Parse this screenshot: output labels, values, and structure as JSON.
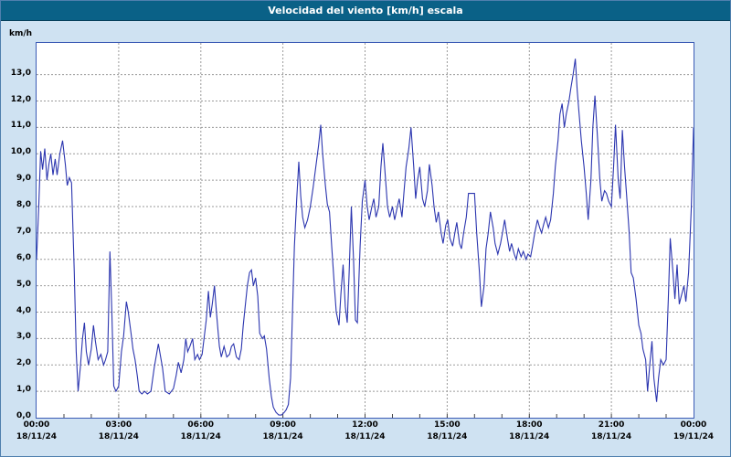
{
  "window": {
    "title": "Velocidad del viento [km/h] escala"
  },
  "colors": {
    "titlebar_bg": "#0a6187",
    "titlebar_text": "#ffffff",
    "frame_bg": "#cfe2f2",
    "plot_bg": "#ffffff",
    "plot_border": "#3b5bb5",
    "gridline": "#9a9a9a",
    "line": "#2b35af",
    "tick_text": "#000000"
  },
  "chart_data": {
    "type": "line",
    "title": "Velocidad del viento [km/h] escala",
    "xlabel": "",
    "ylabel": "km/h",
    "ylim": [
      0,
      14.2
    ],
    "xlim_hours": [
      0,
      24
    ],
    "grid": true,
    "legend_position": "none",
    "line_color": "#2b35af",
    "y_ticks": [
      "0,0",
      "1,0",
      "2,0",
      "3,0",
      "4,0",
      "5,0",
      "6,0",
      "7,0",
      "8,0",
      "9,0",
      "10,0",
      "11,0",
      "12,0",
      "13,0"
    ],
    "x_ticks": [
      {
        "hour": 0,
        "time": "00:00",
        "date": "18/11/24"
      },
      {
        "hour": 3,
        "time": "03:00",
        "date": "18/11/24"
      },
      {
        "hour": 6,
        "time": "06:00",
        "date": "18/11/24"
      },
      {
        "hour": 9,
        "time": "09:00",
        "date": "18/11/24"
      },
      {
        "hour": 12,
        "time": "12:00",
        "date": "18/11/24"
      },
      {
        "hour": 15,
        "time": "15:00",
        "date": "18/11/24"
      },
      {
        "hour": 18,
        "time": "18:00",
        "date": "18/11/24"
      },
      {
        "hour": 21,
        "time": "21:00",
        "date": "18/11/24"
      },
      {
        "hour": 24,
        "time": "00:00",
        "date": "19/11/24"
      }
    ],
    "series": [
      {
        "name": "Velocidad del viento",
        "points": [
          [
            0,
            6.0
          ],
          [
            0.08,
            8.0
          ],
          [
            0.15,
            10.1
          ],
          [
            0.22,
            9.4
          ],
          [
            0.3,
            10.2
          ],
          [
            0.38,
            9.0
          ],
          [
            0.45,
            9.6
          ],
          [
            0.52,
            10.0
          ],
          [
            0.6,
            9.2
          ],
          [
            0.68,
            9.8
          ],
          [
            0.75,
            9.2
          ],
          [
            0.85,
            10.0
          ],
          [
            0.95,
            10.5
          ],
          [
            1.05,
            9.6
          ],
          [
            1.12,
            8.8
          ],
          [
            1.2,
            9.1
          ],
          [
            1.28,
            8.9
          ],
          [
            1.38,
            5.5
          ],
          [
            1.45,
            2.5
          ],
          [
            1.52,
            1.0
          ],
          [
            1.6,
            1.9
          ],
          [
            1.68,
            3.0
          ],
          [
            1.75,
            3.6
          ],
          [
            1.82,
            2.5
          ],
          [
            1.9,
            2.0
          ],
          [
            2.0,
            2.6
          ],
          [
            2.08,
            3.5
          ],
          [
            2.15,
            2.9
          ],
          [
            2.25,
            2.2
          ],
          [
            2.35,
            2.4
          ],
          [
            2.45,
            2.0
          ],
          [
            2.52,
            2.2
          ],
          [
            2.6,
            2.5
          ],
          [
            2.68,
            6.3
          ],
          [
            2.75,
            4.0
          ],
          [
            2.82,
            1.2
          ],
          [
            2.9,
            1.0
          ],
          [
            3.0,
            1.2
          ],
          [
            3.1,
            2.5
          ],
          [
            3.18,
            3.1
          ],
          [
            3.28,
            4.4
          ],
          [
            3.35,
            4.0
          ],
          [
            3.45,
            3.2
          ],
          [
            3.52,
            2.6
          ],
          [
            3.6,
            2.2
          ],
          [
            3.68,
            1.6
          ],
          [
            3.75,
            1.0
          ],
          [
            3.85,
            0.9
          ],
          [
            3.95,
            1.0
          ],
          [
            4.05,
            0.9
          ],
          [
            4.18,
            1.0
          ],
          [
            4.3,
            1.9
          ],
          [
            4.45,
            2.8
          ],
          [
            4.6,
            1.9
          ],
          [
            4.7,
            1.0
          ],
          [
            4.85,
            0.9
          ],
          [
            5.0,
            1.1
          ],
          [
            5.1,
            1.6
          ],
          [
            5.18,
            2.1
          ],
          [
            5.28,
            1.7
          ],
          [
            5.38,
            2.2
          ],
          [
            5.45,
            3.0
          ],
          [
            5.52,
            2.5
          ],
          [
            5.6,
            2.7
          ],
          [
            5.7,
            3.0
          ],
          [
            5.78,
            2.2
          ],
          [
            5.88,
            2.4
          ],
          [
            5.95,
            2.2
          ],
          [
            6.05,
            2.4
          ],
          [
            6.12,
            3.0
          ],
          [
            6.2,
            3.7
          ],
          [
            6.28,
            4.8
          ],
          [
            6.35,
            3.8
          ],
          [
            6.42,
            4.3
          ],
          [
            6.5,
            5.0
          ],
          [
            6.58,
            3.9
          ],
          [
            6.68,
            2.7
          ],
          [
            6.75,
            2.3
          ],
          [
            6.85,
            2.7
          ],
          [
            6.95,
            2.3
          ],
          [
            7.05,
            2.4
          ],
          [
            7.12,
            2.7
          ],
          [
            7.2,
            2.8
          ],
          [
            7.3,
            2.3
          ],
          [
            7.4,
            2.2
          ],
          [
            7.48,
            2.6
          ],
          [
            7.55,
            3.5
          ],
          [
            7.62,
            4.2
          ],
          [
            7.7,
            5.0
          ],
          [
            7.78,
            5.5
          ],
          [
            7.85,
            5.6
          ],
          [
            7.92,
            5.0
          ],
          [
            8.0,
            5.3
          ],
          [
            8.08,
            4.6
          ],
          [
            8.15,
            3.2
          ],
          [
            8.25,
            3.0
          ],
          [
            8.32,
            3.1
          ],
          [
            8.4,
            2.6
          ],
          [
            8.5,
            1.5
          ],
          [
            8.58,
            0.8
          ],
          [
            8.65,
            0.4
          ],
          [
            8.75,
            0.2
          ],
          [
            8.85,
            0.1
          ],
          [
            8.95,
            0.1
          ],
          [
            9.05,
            0.2
          ],
          [
            9.12,
            0.3
          ],
          [
            9.2,
            0.5
          ],
          [
            9.28,
            1.5
          ],
          [
            9.35,
            4.0
          ],
          [
            9.42,
            6.5
          ],
          [
            9.5,
            8.2
          ],
          [
            9.58,
            9.7
          ],
          [
            9.65,
            8.4
          ],
          [
            9.72,
            7.6
          ],
          [
            9.8,
            7.2
          ],
          [
            9.9,
            7.5
          ],
          [
            10.0,
            8.0
          ],
          [
            10.1,
            8.7
          ],
          [
            10.2,
            9.5
          ],
          [
            10.3,
            10.3
          ],
          [
            10.38,
            11.1
          ],
          [
            10.45,
            10.0
          ],
          [
            10.55,
            8.8
          ],
          [
            10.62,
            8.1
          ],
          [
            10.7,
            7.8
          ],
          [
            10.78,
            6.5
          ],
          [
            10.88,
            5.0
          ],
          [
            10.95,
            4.0
          ],
          [
            11.05,
            3.5
          ],
          [
            11.12,
            4.7
          ],
          [
            11.2,
            5.8
          ],
          [
            11.28,
            4.2
          ],
          [
            11.35,
            3.6
          ],
          [
            11.42,
            5.5
          ],
          [
            11.5,
            8.0
          ],
          [
            11.58,
            6.0
          ],
          [
            11.65,
            3.7
          ],
          [
            11.72,
            3.6
          ],
          [
            11.82,
            6.5
          ],
          [
            11.9,
            8.2
          ],
          [
            12.0,
            9.0
          ],
          [
            12.08,
            8.0
          ],
          [
            12.15,
            7.5
          ],
          [
            12.25,
            8.0
          ],
          [
            12.32,
            8.3
          ],
          [
            12.4,
            7.6
          ],
          [
            12.5,
            8.0
          ],
          [
            12.58,
            9.5
          ],
          [
            12.65,
            10.4
          ],
          [
            12.75,
            9.0
          ],
          [
            12.82,
            8.0
          ],
          [
            12.9,
            7.6
          ],
          [
            13.0,
            8.0
          ],
          [
            13.08,
            7.5
          ],
          [
            13.18,
            8.0
          ],
          [
            13.25,
            8.3
          ],
          [
            13.35,
            7.6
          ],
          [
            13.42,
            8.5
          ],
          [
            13.5,
            9.5
          ],
          [
            13.6,
            10.2
          ],
          [
            13.68,
            11.0
          ],
          [
            13.78,
            9.5
          ],
          [
            13.85,
            8.3
          ],
          [
            13.92,
            9.0
          ],
          [
            14.0,
            9.5
          ],
          [
            14.1,
            8.3
          ],
          [
            14.18,
            8.0
          ],
          [
            14.28,
            8.6
          ],
          [
            14.35,
            9.6
          ],
          [
            14.45,
            8.8
          ],
          [
            14.52,
            8.0
          ],
          [
            14.6,
            7.4
          ],
          [
            14.68,
            7.8
          ],
          [
            14.78,
            7.0
          ],
          [
            14.85,
            6.6
          ],
          [
            14.95,
            7.3
          ],
          [
            15.02,
            7.5
          ],
          [
            15.1,
            6.8
          ],
          [
            15.2,
            6.5
          ],
          [
            15.28,
            7.0
          ],
          [
            15.35,
            7.4
          ],
          [
            15.45,
            6.6
          ],
          [
            15.52,
            6.4
          ],
          [
            15.6,
            7.0
          ],
          [
            15.7,
            7.6
          ],
          [
            15.78,
            8.5
          ],
          [
            15.9,
            8.5
          ],
          [
            16.0,
            8.5
          ],
          [
            16.08,
            7.0
          ],
          [
            16.18,
            5.5
          ],
          [
            16.25,
            4.2
          ],
          [
            16.35,
            5.0
          ],
          [
            16.42,
            6.4
          ],
          [
            16.5,
            7.0
          ],
          [
            16.58,
            7.8
          ],
          [
            16.68,
            7.2
          ],
          [
            16.75,
            6.6
          ],
          [
            16.85,
            6.2
          ],
          [
            16.95,
            6.6
          ],
          [
            17.02,
            7.0
          ],
          [
            17.1,
            7.5
          ],
          [
            17.2,
            6.8
          ],
          [
            17.28,
            6.3
          ],
          [
            17.35,
            6.6
          ],
          [
            17.45,
            6.2
          ],
          [
            17.52,
            6.0
          ],
          [
            17.6,
            6.4
          ],
          [
            17.7,
            6.1
          ],
          [
            17.78,
            6.3
          ],
          [
            17.88,
            6.0
          ],
          [
            17.95,
            6.2
          ],
          [
            18.05,
            6.1
          ],
          [
            18.12,
            6.5
          ],
          [
            18.2,
            7.0
          ],
          [
            18.3,
            7.5
          ],
          [
            18.38,
            7.2
          ],
          [
            18.45,
            7.0
          ],
          [
            18.52,
            7.3
          ],
          [
            18.6,
            7.6
          ],
          [
            18.7,
            7.2
          ],
          [
            18.78,
            7.5
          ],
          [
            18.88,
            8.5
          ],
          [
            18.95,
            9.5
          ],
          [
            19.05,
            10.5
          ],
          [
            19.12,
            11.5
          ],
          [
            19.2,
            11.9
          ],
          [
            19.28,
            11.0
          ],
          [
            19.35,
            11.5
          ],
          [
            19.45,
            12.0
          ],
          [
            19.52,
            12.5
          ],
          [
            19.6,
            13.0
          ],
          [
            19.68,
            13.6
          ],
          [
            19.75,
            12.4
          ],
          [
            19.82,
            11.5
          ],
          [
            19.9,
            10.5
          ],
          [
            20.0,
            9.5
          ],
          [
            20.08,
            8.5
          ],
          [
            20.15,
            7.5
          ],
          [
            20.25,
            9.0
          ],
          [
            20.32,
            11.0
          ],
          [
            20.4,
            12.2
          ],
          [
            20.5,
            10.5
          ],
          [
            20.58,
            9.0
          ],
          [
            20.65,
            8.2
          ],
          [
            20.75,
            8.6
          ],
          [
            20.82,
            8.5
          ],
          [
            20.9,
            8.2
          ],
          [
            21.0,
            8.0
          ],
          [
            21.08,
            9.5
          ],
          [
            21.15,
            11.1
          ],
          [
            21.25,
            9.0
          ],
          [
            21.32,
            8.3
          ],
          [
            21.4,
            10.9
          ],
          [
            21.48,
            9.5
          ],
          [
            21.55,
            8.5
          ],
          [
            21.65,
            7.0
          ],
          [
            21.72,
            5.5
          ],
          [
            21.8,
            5.3
          ],
          [
            21.9,
            4.5
          ],
          [
            22.0,
            3.5
          ],
          [
            22.08,
            3.2
          ],
          [
            22.15,
            2.6
          ],
          [
            22.25,
            2.2
          ],
          [
            22.32,
            1.0
          ],
          [
            22.4,
            2.0
          ],
          [
            22.48,
            2.9
          ],
          [
            22.55,
            1.5
          ],
          [
            22.65,
            0.6
          ],
          [
            22.72,
            1.5
          ],
          [
            22.8,
            2.2
          ],
          [
            22.9,
            2.0
          ],
          [
            23.0,
            2.2
          ],
          [
            23.08,
            4.5
          ],
          [
            23.15,
            6.8
          ],
          [
            23.25,
            5.5
          ],
          [
            23.32,
            4.5
          ],
          [
            23.4,
            5.8
          ],
          [
            23.48,
            4.3
          ],
          [
            23.55,
            4.6
          ],
          [
            23.65,
            5.0
          ],
          [
            23.72,
            4.4
          ],
          [
            23.82,
            5.5
          ],
          [
            23.92,
            8.0
          ],
          [
            24.0,
            11.0
          ]
        ]
      }
    ]
  }
}
